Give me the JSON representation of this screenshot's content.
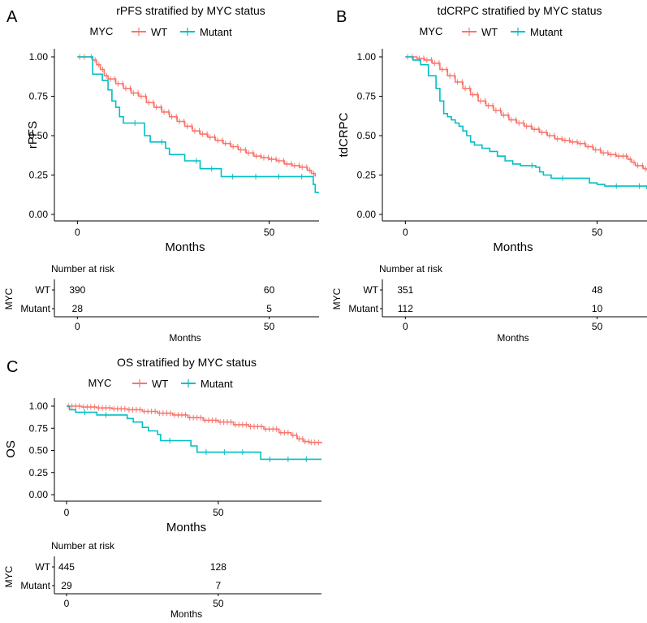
{
  "colors": {
    "wt": "#f8766d",
    "mutant": "#00bfc4",
    "axis": "#000000"
  },
  "risk_table_title": "Number at risk",
  "risk_strata_label": "MYC",
  "risk_xlabel": "Months",
  "chart_data": [
    {
      "panel": "A",
      "type": "line",
      "title": "rPFS stratified by MYC status",
      "legend_title": "MYC",
      "xlabel": "Months",
      "ylabel": "rPFS",
      "xlim": [
        -6,
        63
      ],
      "ylim": [
        0,
        1
      ],
      "xticks": [
        0,
        50
      ],
      "yticks": [
        0,
        0.25,
        0.5,
        0.75,
        1
      ],
      "ytick_labels": [
        "0.00",
        "0.25",
        "0.50",
        "0.75",
        "1.00"
      ],
      "series": [
        {
          "name": "WT",
          "color": "#f8766d",
          "points": [
            [
              0,
              1.0
            ],
            [
              3,
              1.0
            ],
            [
              4,
              0.98
            ],
            [
              5,
              0.95
            ],
            [
              6,
              0.92
            ],
            [
              7,
              0.88
            ],
            [
              8,
              0.86
            ],
            [
              10,
              0.83
            ],
            [
              12,
              0.8
            ],
            [
              14,
              0.77
            ],
            [
              16,
              0.75
            ],
            [
              18,
              0.71
            ],
            [
              20,
              0.68
            ],
            [
              22,
              0.65
            ],
            [
              24,
              0.62
            ],
            [
              26,
              0.59
            ],
            [
              28,
              0.56
            ],
            [
              30,
              0.53
            ],
            [
              32,
              0.51
            ],
            [
              34,
              0.49
            ],
            [
              36,
              0.47
            ],
            [
              38,
              0.45
            ],
            [
              40,
              0.43
            ],
            [
              42,
              0.41
            ],
            [
              44,
              0.39
            ],
            [
              46,
              0.37
            ],
            [
              48,
              0.36
            ],
            [
              50,
              0.35
            ],
            [
              52,
              0.34
            ],
            [
              54,
              0.32
            ],
            [
              56,
              0.31
            ],
            [
              58,
              0.3
            ],
            [
              60,
              0.28
            ],
            [
              61,
              0.26
            ],
            [
              62,
              0.24
            ]
          ]
        },
        {
          "name": "Mutant",
          "color": "#00bfc4",
          "points": [
            [
              0,
              1.0
            ],
            [
              3,
              1.0
            ],
            [
              4,
              0.89
            ],
            [
              6,
              0.89
            ],
            [
              6.5,
              0.85
            ],
            [
              8,
              0.79
            ],
            [
              9,
              0.72
            ],
            [
              10,
              0.68
            ],
            [
              11,
              0.62
            ],
            [
              12,
              0.58
            ],
            [
              17,
              0.58
            ],
            [
              17.5,
              0.5
            ],
            [
              19,
              0.46
            ],
            [
              23,
              0.42
            ],
            [
              24,
              0.38
            ],
            [
              27,
              0.38
            ],
            [
              28,
              0.34
            ],
            [
              32,
              0.29
            ],
            [
              37,
              0.29
            ],
            [
              37.5,
              0.24
            ],
            [
              61,
              0.24
            ],
            [
              61.5,
              0.19
            ],
            [
              62,
              0.14
            ],
            [
              63,
              0.14
            ]
          ]
        }
      ],
      "risk_table": {
        "times": [
          0,
          50
        ],
        "rows": [
          {
            "label": "WT",
            "values": [
              390,
              60
            ]
          },
          {
            "label": "Mutant",
            "values": [
              28,
              5
            ]
          }
        ]
      }
    },
    {
      "panel": "B",
      "type": "line",
      "title": "tdCRPC stratified by MYC status",
      "legend_title": "MYC",
      "xlabel": "Months",
      "ylabel": "tdCRPC",
      "xlim": [
        -6,
        63
      ],
      "ylim": [
        0,
        1
      ],
      "xticks": [
        0,
        50
      ],
      "yticks": [
        0,
        0.25,
        0.5,
        0.75,
        1
      ],
      "ytick_labels": [
        "0.00",
        "0.25",
        "0.50",
        "0.75",
        "1.00"
      ],
      "series": [
        {
          "name": "WT",
          "color": "#f8766d",
          "points": [
            [
              0,
              1.0
            ],
            [
              3,
              0.99
            ],
            [
              5,
              0.98
            ],
            [
              7,
              0.96
            ],
            [
              9,
              0.92
            ],
            [
              11,
              0.88
            ],
            [
              13,
              0.84
            ],
            [
              15,
              0.8
            ],
            [
              17,
              0.76
            ],
            [
              19,
              0.72
            ],
            [
              21,
              0.69
            ],
            [
              23,
              0.66
            ],
            [
              25,
              0.63
            ],
            [
              27,
              0.6
            ],
            [
              29,
              0.58
            ],
            [
              31,
              0.56
            ],
            [
              33,
              0.54
            ],
            [
              35,
              0.52
            ],
            [
              37,
              0.5
            ],
            [
              39,
              0.48
            ],
            [
              41,
              0.47
            ],
            [
              43,
              0.46
            ],
            [
              45,
              0.45
            ],
            [
              47,
              0.43
            ],
            [
              49,
              0.41
            ],
            [
              51,
              0.39
            ],
            [
              53,
              0.38
            ],
            [
              55,
              0.37
            ],
            [
              57,
              0.37
            ],
            [
              58,
              0.35
            ],
            [
              59,
              0.33
            ],
            [
              60,
              0.31
            ],
            [
              62,
              0.29
            ],
            [
              63,
              0.28
            ]
          ]
        },
        {
          "name": "Mutant",
          "color": "#00bfc4",
          "points": [
            [
              0,
              1.0
            ],
            [
              2,
              0.98
            ],
            [
              4,
              0.95
            ],
            [
              6,
              0.88
            ],
            [
              8,
              0.8
            ],
            [
              9,
              0.72
            ],
            [
              10,
              0.64
            ],
            [
              11,
              0.62
            ],
            [
              12,
              0.6
            ],
            [
              13,
              0.58
            ],
            [
              14,
              0.56
            ],
            [
              15,
              0.53
            ],
            [
              16,
              0.5
            ],
            [
              17,
              0.46
            ],
            [
              18,
              0.44
            ],
            [
              20,
              0.42
            ],
            [
              22,
              0.4
            ],
            [
              24,
              0.37
            ],
            [
              26,
              0.34
            ],
            [
              28,
              0.32
            ],
            [
              30,
              0.31
            ],
            [
              34,
              0.3
            ],
            [
              35,
              0.27
            ],
            [
              36,
              0.25
            ],
            [
              38,
              0.23
            ],
            [
              46,
              0.23
            ],
            [
              48,
              0.2
            ],
            [
              50,
              0.19
            ],
            [
              52,
              0.18
            ],
            [
              62,
              0.18
            ],
            [
              63,
              0.16
            ]
          ]
        }
      ],
      "risk_table": {
        "times": [
          0,
          50
        ],
        "rows": [
          {
            "label": "WT",
            "values": [
              351,
              48
            ]
          },
          {
            "label": "Mutant",
            "values": [
              112,
              10
            ]
          }
        ]
      }
    },
    {
      "panel": "C",
      "type": "line",
      "title": "OS stratified by MYC status",
      "legend_title": "MYC",
      "xlabel": "Months",
      "ylabel": "OS",
      "xlim": [
        -4,
        84
      ],
      "ylim": [
        0,
        1
      ],
      "xticks": [
        0,
        50
      ],
      "yticks": [
        0,
        0.25,
        0.5,
        0.75,
        1
      ],
      "ytick_labels": [
        "0.00",
        "0.25",
        "0.50",
        "0.75",
        "1.00"
      ],
      "series": [
        {
          "name": "WT",
          "color": "#f8766d",
          "points": [
            [
              0,
              1.0
            ],
            [
              5,
              0.99
            ],
            [
              10,
              0.98
            ],
            [
              15,
              0.97
            ],
            [
              20,
              0.96
            ],
            [
              25,
              0.94
            ],
            [
              30,
              0.92
            ],
            [
              35,
              0.9
            ],
            [
              40,
              0.87
            ],
            [
              45,
              0.84
            ],
            [
              50,
              0.82
            ],
            [
              55,
              0.79
            ],
            [
              60,
              0.77
            ],
            [
              65,
              0.74
            ],
            [
              70,
              0.7
            ],
            [
              74,
              0.67
            ],
            [
              76,
              0.63
            ],
            [
              78,
              0.6
            ],
            [
              80,
              0.59
            ],
            [
              84,
              0.58
            ]
          ]
        },
        {
          "name": "Mutant",
          "color": "#00bfc4",
          "points": [
            [
              0,
              1.0
            ],
            [
              1,
              0.96
            ],
            [
              3,
              0.93
            ],
            [
              9,
              0.93
            ],
            [
              10,
              0.9
            ],
            [
              19,
              0.9
            ],
            [
              20,
              0.86
            ],
            [
              22,
              0.82
            ],
            [
              25,
              0.76
            ],
            [
              27,
              0.72
            ],
            [
              30,
              0.68
            ],
            [
              31,
              0.61
            ],
            [
              40,
              0.61
            ],
            [
              41,
              0.55
            ],
            [
              43,
              0.48
            ],
            [
              63,
              0.48
            ],
            [
              64,
              0.4
            ],
            [
              84,
              0.4
            ]
          ]
        }
      ],
      "risk_table": {
        "times": [
          0,
          50
        ],
        "rows": [
          {
            "label": "WT",
            "values": [
              445,
              128
            ]
          },
          {
            "label": "Mutant",
            "values": [
              29,
              7
            ]
          }
        ]
      }
    }
  ]
}
